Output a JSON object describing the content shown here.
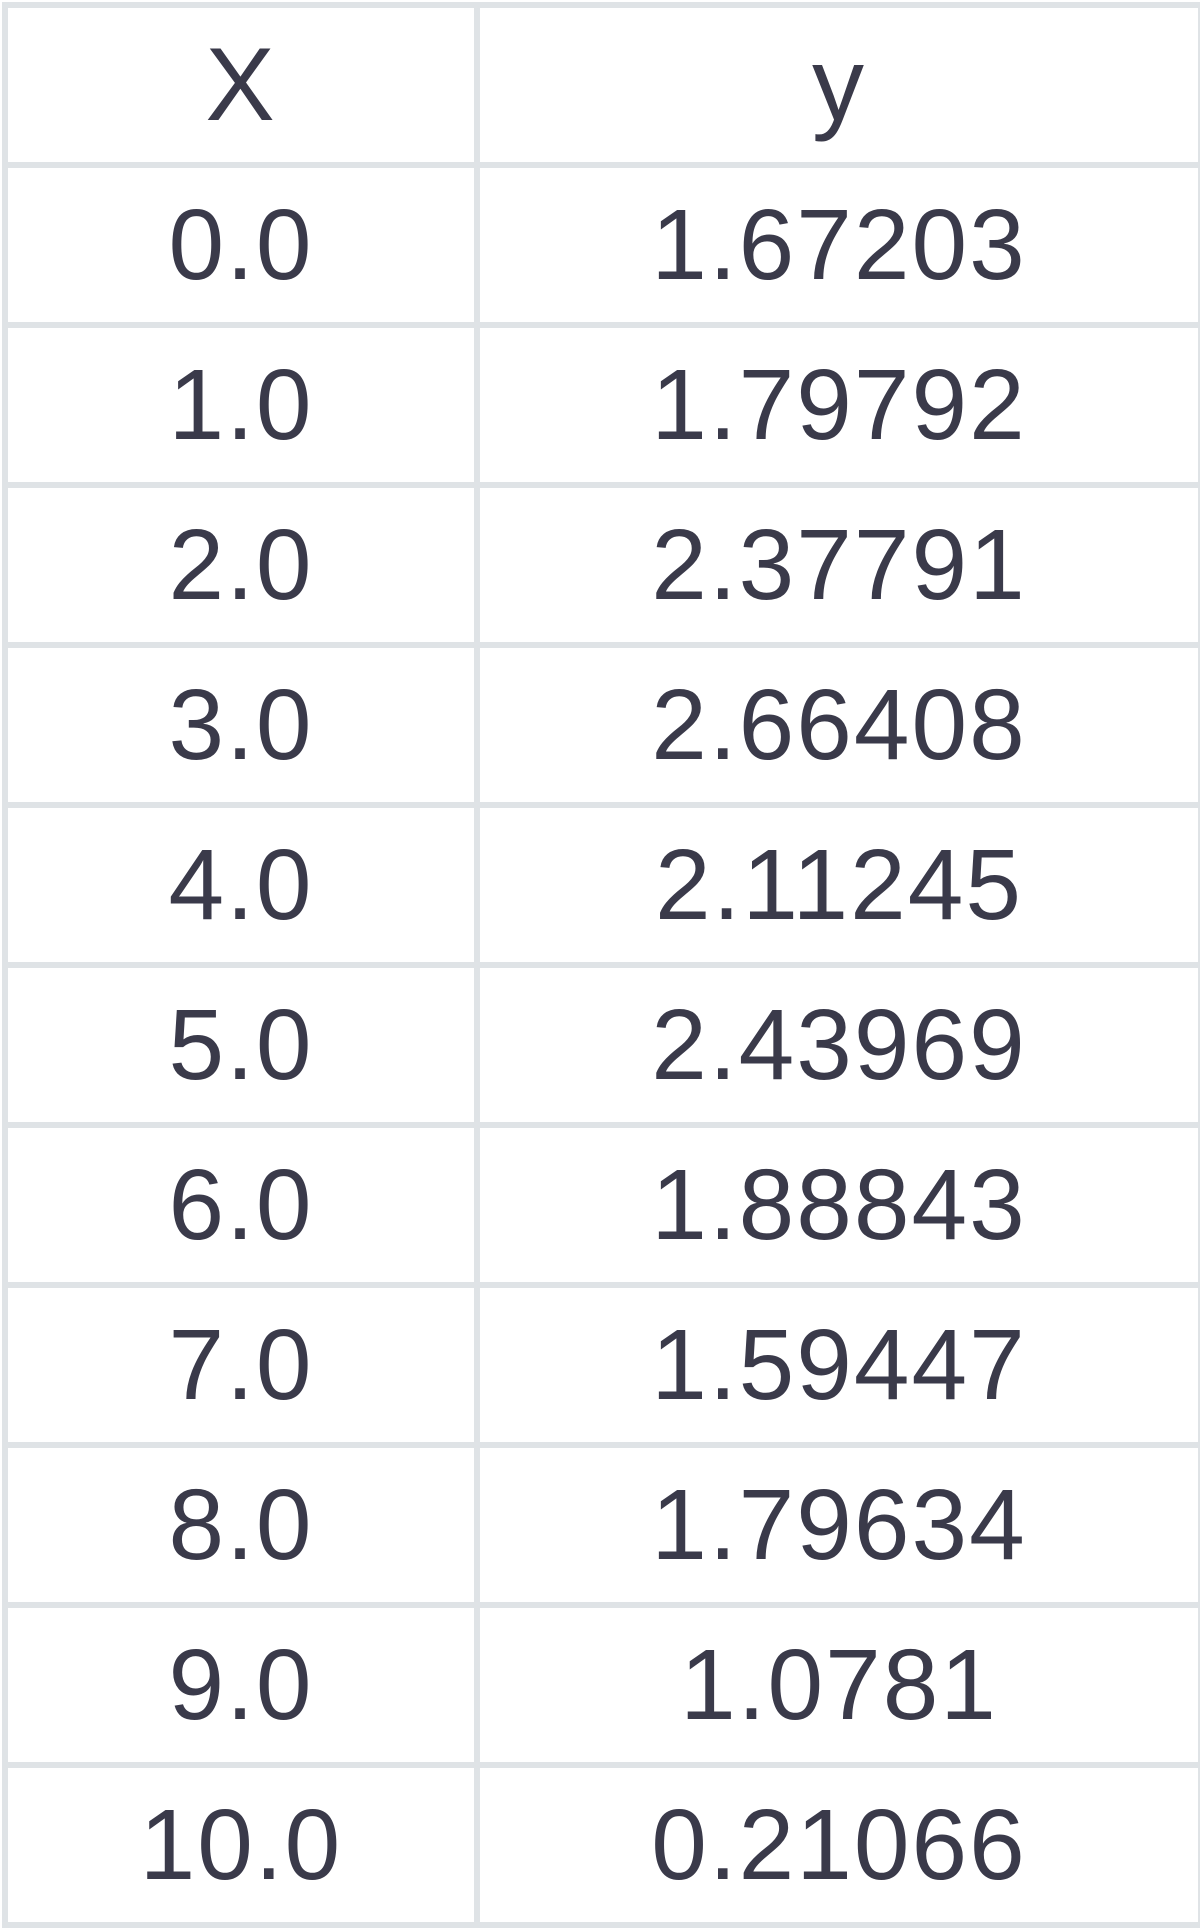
{
  "chart_data": {
    "type": "table",
    "columns": [
      "X",
      "y"
    ],
    "rows": [
      [
        "0.0",
        "1.67203"
      ],
      [
        "1.0",
        "1.79792"
      ],
      [
        "2.0",
        "2.37791"
      ],
      [
        "3.0",
        "2.66408"
      ],
      [
        "4.0",
        "2.11245"
      ],
      [
        "5.0",
        "2.43969"
      ],
      [
        "6.0",
        "1.88843"
      ],
      [
        "7.0",
        "1.59447"
      ],
      [
        "8.0",
        "1.79634"
      ],
      [
        "9.0",
        "1.0781"
      ],
      [
        "10.0",
        "0.21066"
      ]
    ]
  },
  "colors": {
    "grid": "#dfe3e6",
    "text": "#3a3a4a",
    "background": "#ffffff"
  }
}
